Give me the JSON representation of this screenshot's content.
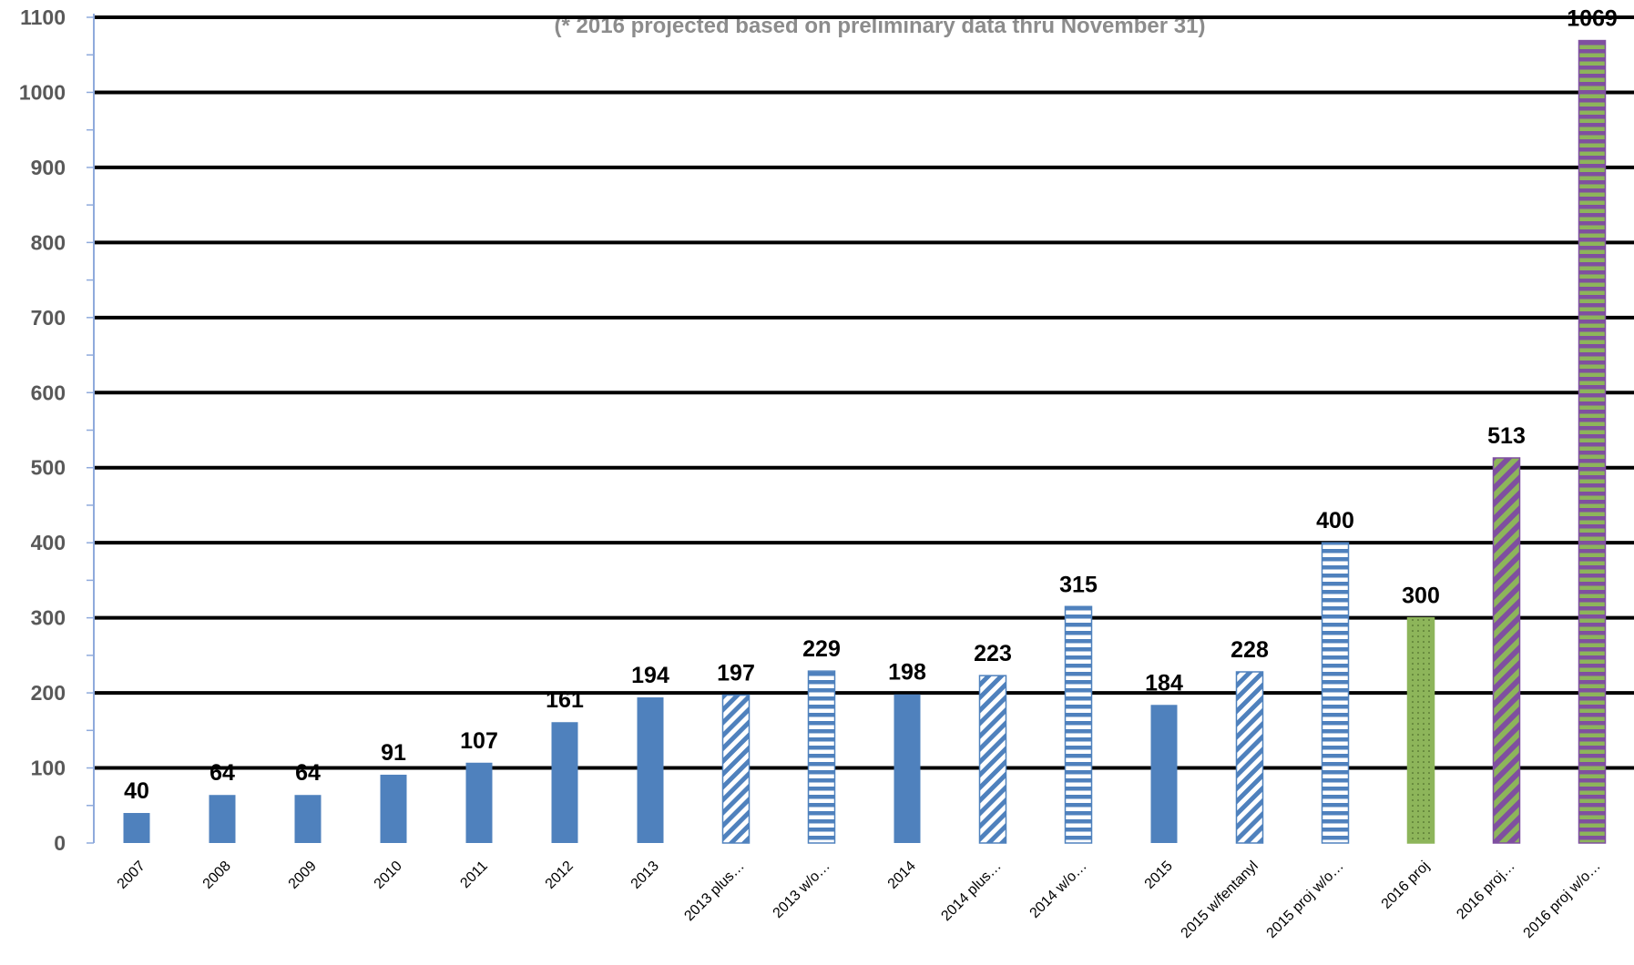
{
  "chart_data": {
    "type": "bar",
    "subtitle": "(* 2016 projected based on preliminary data thru November 31)",
    "title": "",
    "xlabel": "",
    "ylabel": "",
    "ylim": [
      0,
      1100
    ],
    "ytick_step": 100,
    "yticks": [
      "0",
      "100",
      "200",
      "300",
      "400",
      "500",
      "600",
      "700",
      "800",
      "900",
      "1000",
      "1100"
    ],
    "grid": true,
    "legend": "none",
    "categories": [
      "2007",
      "2008",
      "2009",
      "2010",
      "2011",
      "2012",
      "2013",
      "2013 plus…",
      "2013 w/o…",
      "2014",
      "2014 plus…",
      "2014 w/o…",
      "2015",
      "2015 w/fentanyl",
      "2015 proj w/o…",
      "2016 proj",
      "2016 proj…",
      "2016 proj w/o…"
    ],
    "values": [
      40,
      64,
      64,
      91,
      107,
      161,
      194,
      197,
      229,
      198,
      223,
      315,
      184,
      228,
      400,
      300,
      513,
      1069
    ],
    "data_labels": [
      "40",
      "64",
      "64",
      "91",
      "107",
      "161",
      "194",
      "197",
      "229",
      "198",
      "223",
      "315",
      "184",
      "228",
      "400",
      "300",
      "513",
      "1069"
    ],
    "bar_styles": [
      "solid",
      "solid",
      "solid",
      "solid",
      "solid",
      "solid",
      "solid",
      "diag-blue",
      "horiz-blue",
      "solid",
      "diag-blue",
      "horiz-blue",
      "solid",
      "diag-blue",
      "horiz-blue",
      "dots-green",
      "diag-purple-green",
      "horiz-purple-green"
    ],
    "colors": {
      "bar_blue": "#4f81bd",
      "hatch_blue": "#4f81bd",
      "green": "#8db55a",
      "purple": "#7f4fa0",
      "gridline": "#000000",
      "axis": "#8faadc"
    }
  }
}
